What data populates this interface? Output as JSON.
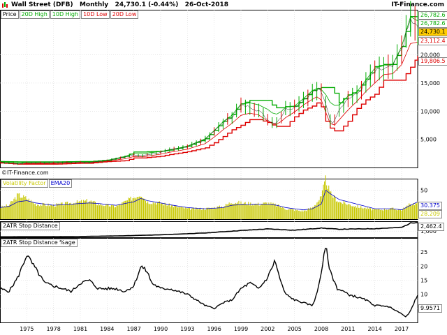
{
  "header": {
    "symbol": "Wall Street (DFB)",
    "period": "Monthly",
    "quote": "24,730.1 (-0.44%)",
    "date": "26-Oct-2018",
    "brand": "IT-Finance.com"
  },
  "watermark": "©IT-Finance.com",
  "colors": {
    "price": "#000000",
    "up": "#00aa00",
    "down": "#dd0000",
    "vol": "#c8c800",
    "ema": "#0000cc",
    "last": "#ffcc00"
  },
  "price_panel": {
    "legend": [
      "Price",
      "20D High",
      "10D High",
      "10D Low",
      "20D Low"
    ],
    "legend_colors": [
      "#000000",
      "#00aa00",
      "#00aa00",
      "#dd0000",
      "#dd0000"
    ],
    "ticks": [
      "5,000",
      "10,000",
      "15,000",
      "20,000"
    ],
    "tags": [
      {
        "text": "26,782.6",
        "color": "#00aa00"
      },
      {
        "text": "26,782.6",
        "color": "#00aa00"
      },
      {
        "text": "24,730.1",
        "color": "#000000",
        "bg": "#ffcc00"
      },
      {
        "text": "23,112.4",
        "color": "#dd0000"
      },
      {
        "text": "19,806.5",
        "color": "#dd0000"
      }
    ]
  },
  "vol_panel": {
    "legend": [
      "Volatility Factor",
      "EMA20"
    ],
    "legend_colors": [
      "#c8c800",
      "#0000cc"
    ],
    "ticks": [
      "50"
    ],
    "tags": [
      {
        "text": "30.375",
        "color": "#0000cc"
      },
      {
        "text": "28.209",
        "color": "#c8c800"
      }
    ]
  },
  "atr_panel": {
    "legend": [
      "2ATR Stop Distance"
    ],
    "ticks": [
      "1,000"
    ],
    "tags": [
      {
        "text": "2,462.4",
        "color": "#000000"
      }
    ]
  },
  "pct_panel": {
    "legend": [
      "2ATR Stop Distance %age"
    ],
    "ticks": [
      "5",
      "10",
      "15",
      "20",
      "25"
    ],
    "tags": [
      {
        "text": "9.9571",
        "color": "#000000"
      }
    ]
  },
  "chart_data": {
    "type": "line",
    "x_ticks": [
      "1975",
      "1978",
      "1981",
      "1984",
      "1987",
      "1990",
      "1993",
      "1996",
      "1999",
      "2002",
      "2005",
      "2008",
      "2011",
      "2014",
      "2017"
    ],
    "x_range": [
      1972,
      2018.8
    ],
    "price": {
      "ylim": [
        0,
        28000
      ],
      "x": [
        1972,
        1974,
        1975,
        1978,
        1981,
        1982,
        1984,
        1986,
        1987,
        1988,
        1990,
        1991,
        1993,
        1995,
        1996,
        1997,
        1998,
        1999,
        2000,
        2001,
        2002,
        2002.8,
        2003.5,
        2004,
        2005,
        2006,
        2007,
        2007.8,
        2008.5,
        2009.2,
        2010,
        2011,
        2012,
        2013,
        2014,
        2015,
        2016,
        2017,
        2018,
        2018.8
      ],
      "close": [
        950,
        650,
        850,
        850,
        950,
        900,
        1200,
        1900,
        2200,
        2100,
        2700,
        3100,
        3700,
        5000,
        6400,
        7900,
        9000,
        11000,
        10800,
        10100,
        8500,
        7800,
        9000,
        10400,
        10700,
        12000,
        13300,
        13900,
        11400,
        7500,
        10400,
        12200,
        13000,
        15000,
        17000,
        17500,
        17800,
        21000,
        26200,
        24730
      ],
      "high20": [
        1050,
        1000,
        1000,
        1000,
        1050,
        1050,
        1300,
        2000,
        2750,
        2750,
        2900,
        3100,
        3800,
        5100,
        6600,
        8200,
        9400,
        11300,
        11900,
        11900,
        11900,
        10600,
        10600,
        10800,
        10900,
        12200,
        13700,
        14200,
        14200,
        14200,
        11500,
        12900,
        13600,
        15700,
        17900,
        18300,
        18300,
        21500,
        26800,
        26782.6
      ],
      "low20": [
        800,
        600,
        600,
        600,
        750,
        750,
        1050,
        1200,
        1700,
        1700,
        2000,
        2300,
        2800,
        3500,
        4400,
        5500,
        6700,
        7500,
        8500,
        8500,
        8000,
        7300,
        7300,
        7300,
        9000,
        10200,
        10900,
        11800,
        8200,
        6500,
        6500,
        8200,
        10500,
        12000,
        13000,
        15500,
        15500,
        15500,
        17800,
        19806.5
      ]
    },
    "volatility": {
      "ylim": [
        0,
        70
      ],
      "x": [
        1972,
        1973,
        1974,
        1975,
        1976,
        1978,
        1980,
        1982,
        1983,
        1985,
        1987,
        1987.8,
        1988.5,
        1990,
        1991,
        1993,
        1995,
        1997,
        1998,
        1999,
        2001,
        2002,
        2003,
        2004,
        2006,
        2007,
        2008,
        2008.5,
        2009,
        2010,
        2012,
        2014,
        2016,
        2017,
        2018,
        2018.8
      ],
      "vf": [
        20,
        24,
        42,
        36,
        26,
        24,
        28,
        32,
        26,
        22,
        38,
        44,
        30,
        28,
        24,
        18,
        18,
        22,
        30,
        28,
        26,
        28,
        24,
        18,
        14,
        20,
        38,
        70,
        44,
        30,
        22,
        16,
        18,
        16,
        26,
        28
      ],
      "ema": [
        20,
        22,
        30,
        32,
        28,
        24,
        26,
        28,
        27,
        24,
        30,
        36,
        32,
        28,
        25,
        20,
        18,
        20,
        24,
        25,
        26,
        26,
        24,
        20,
        16,
        18,
        26,
        50,
        44,
        34,
        26,
        18,
        18,
        16,
        24,
        30
      ]
    },
    "atr": {
      "ylim": [
        0,
        2600
      ],
      "x": [
        1972,
        1980,
        1986,
        1990,
        1995,
        1999,
        2002,
        2005,
        2008,
        2010,
        2014,
        2017,
        2018,
        2018.8
      ],
      "val": [
        80,
        100,
        250,
        400,
        700,
        1100,
        1350,
        1150,
        1500,
        1300,
        1400,
        1600,
        2300,
        2462.4
      ]
    },
    "pct": {
      "ylim": [
        0,
        30
      ],
      "x": [
        1972,
        1973,
        1974,
        1975,
        1976,
        1977,
        1979,
        1980,
        1981,
        1982,
        1983,
        1985,
        1986,
        1987,
        1987.8,
        1988.5,
        1989,
        1990,
        1991,
        1993,
        1995,
        1996,
        1997,
        1998,
        1999,
        2000,
        2001,
        2002,
        2002.8,
        2003.5,
        2004,
        2005,
        2006,
        2007,
        2007.5,
        2008,
        2008.5,
        2009,
        2009.8,
        2010.5,
        2011,
        2012,
        2013,
        2014,
        2015,
        2016,
        2017,
        2017.5,
        2018,
        2018.8
      ],
      "val": [
        12,
        11,
        16,
        24,
        19,
        14,
        12,
        11,
        14,
        15,
        12,
        12,
        11,
        13,
        20,
        18,
        14,
        12,
        12,
        10,
        6,
        5,
        7,
        8,
        12,
        14,
        12,
        16,
        22,
        14,
        10,
        8,
        7,
        6,
        10,
        18,
        27,
        18,
        12,
        11,
        10,
        9,
        8,
        6,
        6,
        5,
        3,
        2,
        4,
        9.9571
      ]
    }
  }
}
